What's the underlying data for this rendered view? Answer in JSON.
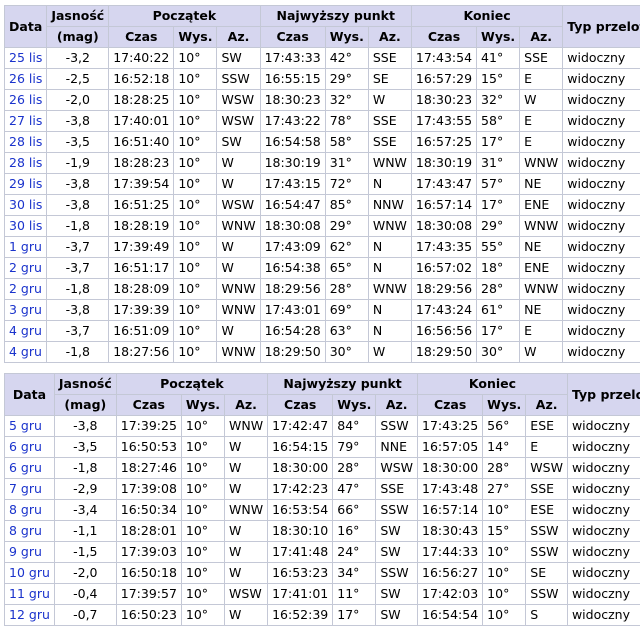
{
  "headers": {
    "date": "Data",
    "magnitude": "Jasność",
    "magnitude_unit": "(mag)",
    "start": "Początek",
    "max": "Najwyższy punkt",
    "end": "Koniec",
    "type": "Typ przelotu",
    "time": "Czas",
    "alt": "Wys.",
    "az": "Az."
  },
  "table1": [
    {
      "date": "25 lis",
      "mag": "-3,2",
      "s_time": "17:40:22",
      "s_alt": "10°",
      "s_az": "SW",
      "m_time": "17:43:33",
      "m_alt": "42°",
      "m_az": "SSE",
      "e_time": "17:43:54",
      "e_alt": "41°",
      "e_az": "SSE",
      "type": "widoczny"
    },
    {
      "date": "26 lis",
      "mag": "-2,5",
      "s_time": "16:52:18",
      "s_alt": "10°",
      "s_az": "SSW",
      "m_time": "16:55:15",
      "m_alt": "29°",
      "m_az": "SE",
      "e_time": "16:57:29",
      "e_alt": "15°",
      "e_az": "E",
      "type": "widoczny"
    },
    {
      "date": "26 lis",
      "mag": "-2,0",
      "s_time": "18:28:25",
      "s_alt": "10°",
      "s_az": "WSW",
      "m_time": "18:30:23",
      "m_alt": "32°",
      "m_az": "W",
      "e_time": "18:30:23",
      "e_alt": "32°",
      "e_az": "W",
      "type": "widoczny"
    },
    {
      "date": "27 lis",
      "mag": "-3,8",
      "s_time": "17:40:01",
      "s_alt": "10°",
      "s_az": "WSW",
      "m_time": "17:43:22",
      "m_alt": "78°",
      "m_az": "SSE",
      "e_time": "17:43:55",
      "e_alt": "58°",
      "e_az": "E",
      "type": "widoczny"
    },
    {
      "date": "28 lis",
      "mag": "-3,5",
      "s_time": "16:51:40",
      "s_alt": "10°",
      "s_az": "SW",
      "m_time": "16:54:58",
      "m_alt": "58°",
      "m_az": "SSE",
      "e_time": "16:57:25",
      "e_alt": "17°",
      "e_az": "E",
      "type": "widoczny"
    },
    {
      "date": "28 lis",
      "mag": "-1,9",
      "s_time": "18:28:23",
      "s_alt": "10°",
      "s_az": "W",
      "m_time": "18:30:19",
      "m_alt": "31°",
      "m_az": "WNW",
      "e_time": "18:30:19",
      "e_alt": "31°",
      "e_az": "WNW",
      "type": "widoczny"
    },
    {
      "date": "29 lis",
      "mag": "-3,8",
      "s_time": "17:39:54",
      "s_alt": "10°",
      "s_az": "W",
      "m_time": "17:43:15",
      "m_alt": "72°",
      "m_az": "N",
      "e_time": "17:43:47",
      "e_alt": "57°",
      "e_az": "NE",
      "type": "widoczny"
    },
    {
      "date": "30 lis",
      "mag": "-3,8",
      "s_time": "16:51:25",
      "s_alt": "10°",
      "s_az": "WSW",
      "m_time": "16:54:47",
      "m_alt": "85°",
      "m_az": "NNW",
      "e_time": "16:57:14",
      "e_alt": "17°",
      "e_az": "ENE",
      "type": "widoczny"
    },
    {
      "date": "30 lis",
      "mag": "-1,8",
      "s_time": "18:28:19",
      "s_alt": "10°",
      "s_az": "WNW",
      "m_time": "18:30:08",
      "m_alt": "29°",
      "m_az": "WNW",
      "e_time": "18:30:08",
      "e_alt": "29°",
      "e_az": "WNW",
      "type": "widoczny"
    },
    {
      "date": "1 gru",
      "mag": "-3,7",
      "s_time": "17:39:49",
      "s_alt": "10°",
      "s_az": "W",
      "m_time": "17:43:09",
      "m_alt": "62°",
      "m_az": "N",
      "e_time": "17:43:35",
      "e_alt": "55°",
      "e_az": "NE",
      "type": "widoczny"
    },
    {
      "date": "2 gru",
      "mag": "-3,7",
      "s_time": "16:51:17",
      "s_alt": "10°",
      "s_az": "W",
      "m_time": "16:54:38",
      "m_alt": "65°",
      "m_az": "N",
      "e_time": "16:57:02",
      "e_alt": "18°",
      "e_az": "ENE",
      "type": "widoczny"
    },
    {
      "date": "2 gru",
      "mag": "-1,8",
      "s_time": "18:28:09",
      "s_alt": "10°",
      "s_az": "WNW",
      "m_time": "18:29:56",
      "m_alt": "28°",
      "m_az": "WNW",
      "e_time": "18:29:56",
      "e_alt": "28°",
      "e_az": "WNW",
      "type": "widoczny"
    },
    {
      "date": "3 gru",
      "mag": "-3,8",
      "s_time": "17:39:39",
      "s_alt": "10°",
      "s_az": "WNW",
      "m_time": "17:43:01",
      "m_alt": "69°",
      "m_az": "N",
      "e_time": "17:43:24",
      "e_alt": "61°",
      "e_az": "NE",
      "type": "widoczny"
    },
    {
      "date": "4 gru",
      "mag": "-3,7",
      "s_time": "16:51:09",
      "s_alt": "10°",
      "s_az": "W",
      "m_time": "16:54:28",
      "m_alt": "63°",
      "m_az": "N",
      "e_time": "16:56:56",
      "e_alt": "17°",
      "e_az": "E",
      "type": "widoczny"
    },
    {
      "date": "4 gru",
      "mag": "-1,8",
      "s_time": "18:27:56",
      "s_alt": "10°",
      "s_az": "WNW",
      "m_time": "18:29:50",
      "m_alt": "30°",
      "m_az": "W",
      "e_time": "18:29:50",
      "e_alt": "30°",
      "e_az": "W",
      "type": "widoczny"
    }
  ],
  "table2": [
    {
      "date": "5 gru",
      "mag": "-3,8",
      "s_time": "17:39:25",
      "s_alt": "10°",
      "s_az": "WNW",
      "m_time": "17:42:47",
      "m_alt": "84°",
      "m_az": "SSW",
      "e_time": "17:43:25",
      "e_alt": "56°",
      "e_az": "ESE",
      "type": "widoczny"
    },
    {
      "date": "6 gru",
      "mag": "-3,5",
      "s_time": "16:50:53",
      "s_alt": "10°",
      "s_az": "W",
      "m_time": "16:54:15",
      "m_alt": "79°",
      "m_az": "NNE",
      "e_time": "16:57:05",
      "e_alt": "14°",
      "e_az": "E",
      "type": "widoczny"
    },
    {
      "date": "6 gru",
      "mag": "-1,8",
      "s_time": "18:27:46",
      "s_alt": "10°",
      "s_az": "W",
      "m_time": "18:30:00",
      "m_alt": "28°",
      "m_az": "WSW",
      "e_time": "18:30:00",
      "e_alt": "28°",
      "e_az": "WSW",
      "type": "widoczny"
    },
    {
      "date": "7 gru",
      "mag": "-2,9",
      "s_time": "17:39:08",
      "s_alt": "10°",
      "s_az": "W",
      "m_time": "17:42:23",
      "m_alt": "47°",
      "m_az": "SSE",
      "e_time": "17:43:48",
      "e_alt": "27°",
      "e_az": "SSE",
      "type": "widoczny"
    },
    {
      "date": "8 gru",
      "mag": "-3,4",
      "s_time": "16:50:34",
      "s_alt": "10°",
      "s_az": "WNW",
      "m_time": "16:53:54",
      "m_alt": "66°",
      "m_az": "SSW",
      "e_time": "16:57:14",
      "e_alt": "10°",
      "e_az": "ESE",
      "type": "widoczny"
    },
    {
      "date": "8 gru",
      "mag": "-1,1",
      "s_time": "18:28:01",
      "s_alt": "10°",
      "s_az": "W",
      "m_time": "18:30:10",
      "m_alt": "16°",
      "m_az": "SW",
      "e_time": "18:30:43",
      "e_alt": "15°",
      "e_az": "SSW",
      "type": "widoczny"
    },
    {
      "date": "9 gru",
      "mag": "-1,5",
      "s_time": "17:39:03",
      "s_alt": "10°",
      "s_az": "W",
      "m_time": "17:41:48",
      "m_alt": "24°",
      "m_az": "SW",
      "e_time": "17:44:33",
      "e_alt": "10°",
      "e_az": "SSW",
      "type": "widoczny"
    },
    {
      "date": "10 gru",
      "mag": "-2,0",
      "s_time": "16:50:18",
      "s_alt": "10°",
      "s_az": "W",
      "m_time": "16:53:23",
      "m_alt": "34°",
      "m_az": "SSW",
      "e_time": "16:56:27",
      "e_alt": "10°",
      "e_az": "SE",
      "type": "widoczny"
    },
    {
      "date": "11 gru",
      "mag": "-0,4",
      "s_time": "17:39:57",
      "s_alt": "10°",
      "s_az": "WSW",
      "m_time": "17:41:01",
      "m_alt": "11°",
      "m_az": "SW",
      "e_time": "17:42:03",
      "e_alt": "10°",
      "e_az": "SSW",
      "type": "widoczny"
    },
    {
      "date": "12 gru",
      "mag": "-0,7",
      "s_time": "16:50:23",
      "s_alt": "10°",
      "s_az": "W",
      "m_time": "16:52:39",
      "m_alt": "17°",
      "m_az": "SW",
      "e_time": "16:54:54",
      "e_alt": "10°",
      "e_az": "S",
      "type": "widoczny"
    }
  ]
}
